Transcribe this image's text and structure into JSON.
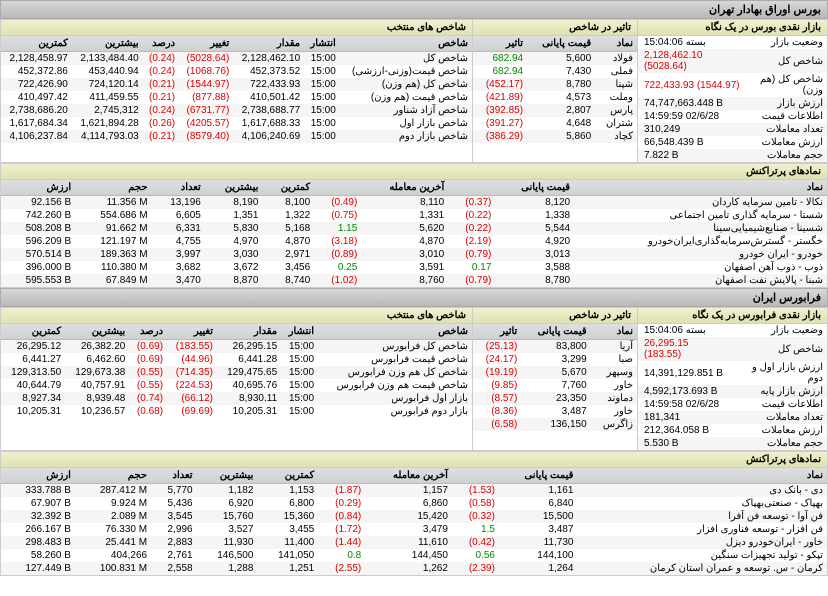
{
  "tse": {
    "mainTitle": "بورس اوراق بهادار تهران",
    "summary": {
      "title": "بازار نقدی بورس در یک نگاه",
      "rows": [
        {
          "label": "وضعیت بازار",
          "value": "بسته 15:04:06",
          "cls": ""
        },
        {
          "label": "شاخص کل",
          "value": "2,128,462.10 (5028.64)",
          "cls": "neg"
        },
        {
          "label": "شاخص كل (هم وزن)",
          "value": "722,433.93 (1544.97)",
          "cls": "neg"
        },
        {
          "label": "ارزش بازار",
          "value": "74,747,663.448 B",
          "cls": ""
        },
        {
          "label": "اطلاعات قیمت",
          "value": "14:59:59 02/6/28",
          "cls": ""
        },
        {
          "label": "تعداد معاملات",
          "value": "310,249",
          "cls": ""
        },
        {
          "label": "ارزش معاملات",
          "value": "66,548.439 B",
          "cls": ""
        },
        {
          "label": "حجم معاملات",
          "value": "7.822 B",
          "cls": ""
        }
      ]
    },
    "impact": {
      "title": "تاثیر در شاخص",
      "headers": [
        "نماد",
        "قیمت پایانی",
        "تاثیر"
      ],
      "rows": [
        [
          "فولاد",
          "5,600",
          "682.94",
          "pos"
        ],
        [
          "فملی",
          "7,430",
          "682.94",
          "pos"
        ],
        [
          "شپنا",
          "8,780",
          "(452.17)",
          "neg"
        ],
        [
          "وملت",
          "4,573",
          "(421.89)",
          "neg"
        ],
        [
          "پارس",
          "2,807",
          "(392.85)",
          "neg"
        ],
        [
          "شتران",
          "4,648",
          "(391.27)",
          "neg"
        ],
        [
          "کچاد",
          "5,860",
          "(386.29)",
          "neg"
        ]
      ]
    },
    "indices": {
      "title": "شاخص های منتخب",
      "headers": [
        "شاخص",
        "انتشار",
        "مقدار",
        "تغییر",
        "درصد",
        "بیشترین",
        "کمترین"
      ],
      "rows": [
        [
          "شاخص كل",
          "15:00",
          "2,128,462.10",
          "(5028.64)",
          "(0.24)",
          "2,133,484.40",
          "2,128,458.97"
        ],
        [
          "شاخص قیمت(وزنی-ارزشی)",
          "15:00",
          "452,373.52",
          "(1068.76)",
          "(0.24)",
          "453,440.94",
          "452,372.86"
        ],
        [
          "شاخص كل (هم وزن)",
          "15:00",
          "722,433.93",
          "(1544.97)",
          "(0.21)",
          "724,120.14",
          "722,426.90"
        ],
        [
          "شاخص قیمت (هم وزن)",
          "15:00",
          "410,501.42",
          "(877.88)",
          "(0.21)",
          "411,459.55",
          "410,497.42"
        ],
        [
          "شاخص آزاد شناور",
          "15:00",
          "2,738,688.77",
          "(6731.77)",
          "(0.24)",
          "2,745,312",
          "2,738,686.20"
        ],
        [
          "شاخص بازار اول",
          "15:00",
          "1,617,688.33",
          "(4205.57)",
          "(0.26)",
          "1,621,894.28",
          "1,617,684.34"
        ],
        [
          "شاخص بازار دوم",
          "15:00",
          "4,106,240.69",
          "(8579.40)",
          "(0.21)",
          "4,114,793.03",
          "4,106,237.84"
        ]
      ]
    },
    "symbols": {
      "title": "نمادهای پرتراکنش",
      "headers": [
        "نماد",
        "قیمت پایانی",
        "",
        "آخرین معامله",
        "",
        "کمترین",
        "بیشترین",
        "تعداد",
        "حجم",
        "ارزش"
      ],
      "rows": [
        [
          "نکالا - تامین سرمایه کاردان",
          "8,120",
          "(0.37)",
          "8,110",
          "(0.49)",
          "8,100",
          "8,190",
          "13,196",
          "11.356 M",
          "92.156 B"
        ],
        [
          "شستا - سرمایه گذاری تامین اجتماعی",
          "1,338",
          "(0.22)",
          "1,331",
          "(0.75)",
          "1,322",
          "1,351",
          "6,605",
          "554.686 M",
          "742.260 B"
        ],
        [
          "شسینا - صنایع‌شیمیایی‌سینا",
          "5,544",
          "(0.22)",
          "5,620",
          "1.15",
          "5,168",
          "5,830",
          "6,331",
          "91.662 M",
          "508.208 B"
        ],
        [
          "خگستر - گسترش‌سرمایه‌گذاری‌ایران‌خودرو",
          "4,920",
          "(2.19)",
          "4,870",
          "(3.18)",
          "4,870",
          "4,970",
          "4,755",
          "121.197 M",
          "596.209 B"
        ],
        [
          "خودرو - ایران‌ خودرو",
          "3,013",
          "(0.79)",
          "3,010",
          "(0.89)",
          "2,971",
          "3,030",
          "3,997",
          "189.363 M",
          "570.514 B"
        ],
        [
          "ذوب - ذوب آهن اصفهان",
          "3,588",
          "0.17",
          "3,591",
          "0.25",
          "3,456",
          "3,672",
          "3,682",
          "110.380 M",
          "396.000 B"
        ],
        [
          "شبنا - پالایش نفت اصفهان",
          "8,780",
          "(0.79)",
          "8,760",
          "(1.02)",
          "8,740",
          "8,870",
          "3,470",
          "67.849 M",
          "595.553 B"
        ]
      ]
    }
  },
  "ifb": {
    "mainTitle": "فرابورس ایران",
    "summary": {
      "title": "بازار نقدی فرابورس در یک نگاه",
      "rows": [
        {
          "label": "وضعیت بازار",
          "value": "بسته 15:04:06",
          "cls": ""
        },
        {
          "label": "شاخص کل",
          "value": "26,295.15 (183.55)",
          "cls": "neg"
        },
        {
          "label": "ارزش بازار اول و دوم",
          "value": "14,391,129.851 B",
          "cls": ""
        },
        {
          "label": "ارزش بازار پایه",
          "value": "4,592,173.693 B",
          "cls": ""
        },
        {
          "label": "اطلاعات قیمت",
          "value": "14:59:58 02/6/28",
          "cls": ""
        },
        {
          "label": "تعداد معاملات",
          "value": "181,341",
          "cls": ""
        },
        {
          "label": "ارزش معاملات",
          "value": "212,364.058 B",
          "cls": ""
        },
        {
          "label": "حجم معاملات",
          "value": "5.530 B",
          "cls": ""
        }
      ]
    },
    "impact": {
      "title": "تاثیر در شاخص",
      "headers": [
        "نماد",
        "قیمت پایانی",
        "تاثیر"
      ],
      "rows": [
        [
          "آریا",
          "83,800",
          "(25.13)",
          "neg"
        ],
        [
          "صبا",
          "3,299",
          "(24.17)",
          "neg"
        ],
        [
          "وسپهر",
          "5,670",
          "(19.19)",
          "neg"
        ],
        [
          "خاور",
          "7,760",
          "(9.85)",
          "neg"
        ],
        [
          "دماوند",
          "23,350",
          "(8.57)",
          "neg"
        ],
        [
          "خاور",
          "3,487",
          "(8.36)",
          "neg"
        ],
        [
          "زاگرس",
          "136,150",
          "(6.58)",
          "neg"
        ]
      ]
    },
    "indices": {
      "title": "شاخص های منتخب",
      "headers": [
        "شاخص",
        "انتشار",
        "مقدار",
        "تغییر",
        "درصد",
        "بیشترین",
        "کمترین"
      ],
      "rows": [
        [
          "شاخص کل فرابورس",
          "15:00",
          "26,295.15",
          "(183.55)",
          "(0.69)",
          "26,382.20",
          "26,295.12"
        ],
        [
          "شاخص قیمت فرابورس",
          "15:00",
          "6,441.28",
          "(44.96)",
          "(0.69)",
          "6,462.60",
          "6,441.27"
        ],
        [
          "شاخص کل هم وزن فرابورس",
          "15:00",
          "129,475.65",
          "(714.35)",
          "(0.55)",
          "129,673.38",
          "129,313.50"
        ],
        [
          "شاخص قیمت هم وزن فرابورس",
          "15:00",
          "40,695.76",
          "(224.53)",
          "(0.55)",
          "40,757.91",
          "40,644.79"
        ],
        [
          "بازار اول فرابورس",
          "15:00",
          "8,930.11",
          "(66.12)",
          "(0.74)",
          "8,939.48",
          "8,927.34"
        ],
        [
          "بازار دوم فرابورس",
          "15:00",
          "10,205.31",
          "(69.69)",
          "(0.68)",
          "10,236.57",
          "10,205.31"
        ]
      ]
    },
    "symbols": {
      "title": "نمادهای پرتراکنش",
      "headers": [
        "نماد",
        "قیمت پایانی",
        "",
        "آخرین معامله",
        "",
        "کمترین",
        "بیشترین",
        "تعداد",
        "حجم",
        "ارزش"
      ],
      "rows": [
        [
          "دی - بانک دی",
          "1,161",
          "(1.53)",
          "1,157",
          "(1.87)",
          "1,153",
          "1,182",
          "5,770",
          "287.412 M",
          "333.788 B"
        ],
        [
          "بهپاک - صنعتی‌بهپاک",
          "6,840",
          "(0.58)",
          "6,860",
          "(0.29)",
          "6,800",
          "6,920",
          "5,436",
          "9.924 M",
          "67.907 B"
        ],
        [
          "فن آوا - توسعه فن آفرا",
          "15,500",
          "(0.32)",
          "15,420",
          "(0.84)",
          "15,360",
          "15,760",
          "3,545",
          "2.089 M",
          "32.392 B"
        ],
        [
          "فن افزار - توسعه فناوری افزار",
          "3,487",
          "1.5",
          "3,479",
          "(1.72)",
          "3,455",
          "3,527",
          "2,996",
          "76.330 M",
          "266.167 B"
        ],
        [
          "خاور - ایران‌خودرو دیزل",
          "11,730",
          "(0.42)",
          "11,610",
          "(1.44)",
          "11,400",
          "11,930",
          "2,883",
          "25.441 M",
          "298.483 B"
        ],
        [
          "تپکو - تولید تجهیزات سنگین",
          "144,100",
          "0.56",
          "144,450",
          "0.8",
          "141,050",
          "146,500",
          "2,761",
          "404,266",
          "58.260 B"
        ],
        [
          "کرمان - س. توسعه و عمران استان کرمان",
          "1,264",
          "(2.39)",
          "1,262",
          "(2.55)",
          "1,251",
          "1,288",
          "2,558",
          "100.831 M",
          "127.449 B"
        ]
      ]
    }
  }
}
